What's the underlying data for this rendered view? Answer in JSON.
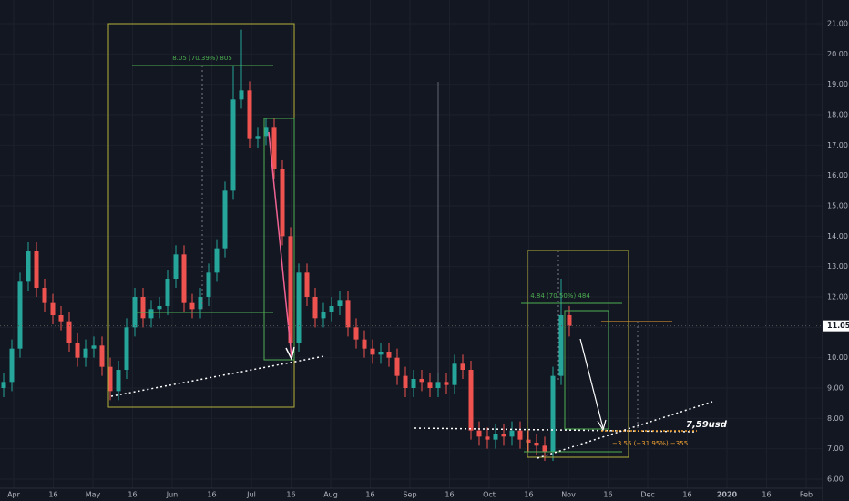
{
  "chart_data": {
    "type": "candlestick",
    "open": [
      9.0,
      9.2,
      10.3,
      12.5,
      13.5,
      12.3,
      11.8,
      11.4,
      11.2,
      10.5,
      10.0,
      10.3,
      10.4,
      9.7,
      8.9,
      9.6,
      11.0,
      12.0,
      11.3,
      11.6,
      11.7,
      12.6,
      13.4,
      11.8,
      11.6,
      12.0,
      12.8,
      13.6,
      15.5,
      18.5,
      18.8,
      17.2,
      17.3,
      17.6,
      16.2,
      14.0,
      10.5,
      12.8,
      12.0,
      11.3,
      11.5,
      11.7,
      11.9,
      11.0,
      10.6,
      10.3,
      10.1,
      10.2,
      10.0,
      9.4,
      9.0,
      9.3,
      9.2,
      9.0,
      9.2,
      9.1,
      9.8,
      9.6,
      7.6,
      7.4,
      7.3,
      7.5,
      7.4,
      7.6,
      7.3,
      7.2,
      7.1,
      6.9,
      9.4,
      11.4
    ],
    "high": [
      9.5,
      10.6,
      12.8,
      13.8,
      13.8,
      12.6,
      12.1,
      11.7,
      11.5,
      10.8,
      10.6,
      10.7,
      10.7,
      10.0,
      9.9,
      11.3,
      12.3,
      12.3,
      11.9,
      12.0,
      12.9,
      13.7,
      13.7,
      12.1,
      12.3,
      13.1,
      13.9,
      15.8,
      19.6,
      20.8,
      19.1,
      17.6,
      17.9,
      17.9,
      16.5,
      14.3,
      13.1,
      13.1,
      12.3,
      11.8,
      12.0,
      12.2,
      12.2,
      11.3,
      10.9,
      10.6,
      10.5,
      10.5,
      10.3,
      9.7,
      9.6,
      9.6,
      9.5,
      9.5,
      9.5,
      10.1,
      10.1,
      9.9,
      7.9,
      7.7,
      7.8,
      7.8,
      7.9,
      7.9,
      7.6,
      7.5,
      7.4,
      9.7,
      12.6,
      11.7
    ],
    "low": [
      8.7,
      8.9,
      10.0,
      12.2,
      12.0,
      11.5,
      11.1,
      10.9,
      10.2,
      9.7,
      9.7,
      10.0,
      9.4,
      8.6,
      8.6,
      9.3,
      10.7,
      11.0,
      11.0,
      11.3,
      11.4,
      12.3,
      11.5,
      11.3,
      11.3,
      11.7,
      12.5,
      13.3,
      15.2,
      18.2,
      16.9,
      16.9,
      17.0,
      15.9,
      13.7,
      10.2,
      10.2,
      11.7,
      11.0,
      11.0,
      11.2,
      11.4,
      10.7,
      10.3,
      10.0,
      9.8,
      9.8,
      9.7,
      9.1,
      8.7,
      8.7,
      8.9,
      8.7,
      8.7,
      8.8,
      8.8,
      9.3,
      7.3,
      7.1,
      7.0,
      7.0,
      7.1,
      7.1,
      7.0,
      6.9,
      6.8,
      6.6,
      6.6,
      9.1,
      10.7
    ],
    "close": [
      9.2,
      10.3,
      12.5,
      13.5,
      12.3,
      11.8,
      11.4,
      11.2,
      10.5,
      10.0,
      10.3,
      10.4,
      9.7,
      8.9,
      9.6,
      11.0,
      12.0,
      11.3,
      11.6,
      11.7,
      12.6,
      13.4,
      11.8,
      11.6,
      12.0,
      12.8,
      13.6,
      15.5,
      18.5,
      18.8,
      17.2,
      17.3,
      17.6,
      16.2,
      14.0,
      10.5,
      12.8,
      12.0,
      11.3,
      11.5,
      11.7,
      11.9,
      11.0,
      10.6,
      10.3,
      10.1,
      10.2,
      10.0,
      9.4,
      9.0,
      9.3,
      9.2,
      9.0,
      9.2,
      9.1,
      9.8,
      9.6,
      7.6,
      7.4,
      7.3,
      7.5,
      7.4,
      7.6,
      7.3,
      7.2,
      7.1,
      6.9,
      9.4,
      11.4,
      11.05
    ],
    "up_color": "#26a69a",
    "down_color": "#ef5350",
    "ylim": [
      6,
      21.6
    ],
    "yticks": [
      {
        "value": 6,
        "label": "6.00"
      },
      {
        "value": 7,
        "label": "7.00"
      },
      {
        "value": 8,
        "label": "8.00"
      },
      {
        "value": 9,
        "label": "9.00"
      },
      {
        "value": 10,
        "label": "10.00"
      },
      {
        "value": 11,
        "label": "11.00"
      },
      {
        "value": 12,
        "label": "12.00"
      },
      {
        "value": 13,
        "label": "13.00"
      },
      {
        "value": 14,
        "label": "14.00"
      },
      {
        "value": 15,
        "label": "15.00"
      },
      {
        "value": 16,
        "label": "16.00"
      },
      {
        "value": 17,
        "label": "17.00"
      },
      {
        "value": 18,
        "label": "18.00"
      },
      {
        "value": 19,
        "label": "19.00"
      },
      {
        "value": 20,
        "label": "20.00"
      },
      {
        "value": 21,
        "label": "21.00"
      }
    ],
    "xtick_labels": [
      "Apr",
      "16",
      "May",
      "16",
      "Jun",
      "16",
      "Jul",
      "16",
      "Aug",
      "16",
      "Sep",
      "16",
      "Oct",
      "16",
      "Nov",
      "16",
      "Dec",
      "16",
      "2020",
      "16",
      "Feb"
    ],
    "last_price": 11.05,
    "annotations": [
      "8.05 (70.39%) 805",
      "4.84 (70.50%) 484",
      "−3.55 (−31.95%) −355",
      "7,59usd"
    ]
  }
}
